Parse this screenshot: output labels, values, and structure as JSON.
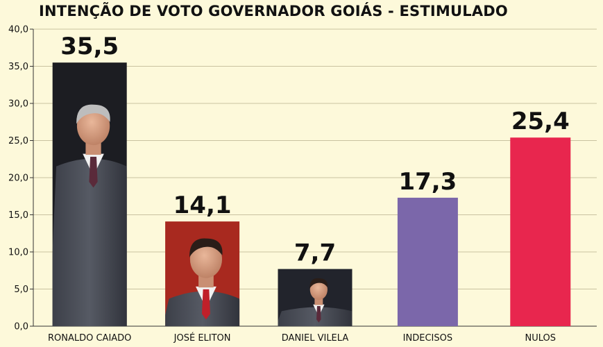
{
  "chart_data": {
    "type": "bar",
    "title": "INTENÇÃO DE VOTO GOVERNADOR GOIÁS - ESTIMULADO",
    "categories": [
      "RONALDO CAIADO",
      "JOSÉ ELITON",
      "DANIEL VILELA",
      "INDECISOS",
      "NULOS"
    ],
    "values": [
      35.5,
      14.1,
      7.7,
      17.3,
      25.4
    ],
    "value_labels": [
      "35,5",
      "14,1",
      "7,7",
      "17,3",
      "25,4"
    ],
    "ylim": [
      0,
      40
    ],
    "yticks": [
      "0,0",
      "5,0",
      "10,0",
      "15,0",
      "20,0",
      "25,0",
      "30,0",
      "35,0",
      "40,0"
    ],
    "grid": true,
    "bar_fills": [
      "photo-candidate",
      "photo-candidate",
      "photo-candidate",
      "solid",
      "solid"
    ],
    "colors": {
      "INDECISOS": "#7b67aa",
      "NULOS": "#e8264e",
      "photo_bg_RONALDO_CAIADO": "#1c1d22",
      "photo_bg_JOSE_ELITON": "#a8291f",
      "photo_bg_DANIEL_VILELA": "#22242c",
      "background": "#fdf9da",
      "grid": "#c9c2a0"
    }
  }
}
